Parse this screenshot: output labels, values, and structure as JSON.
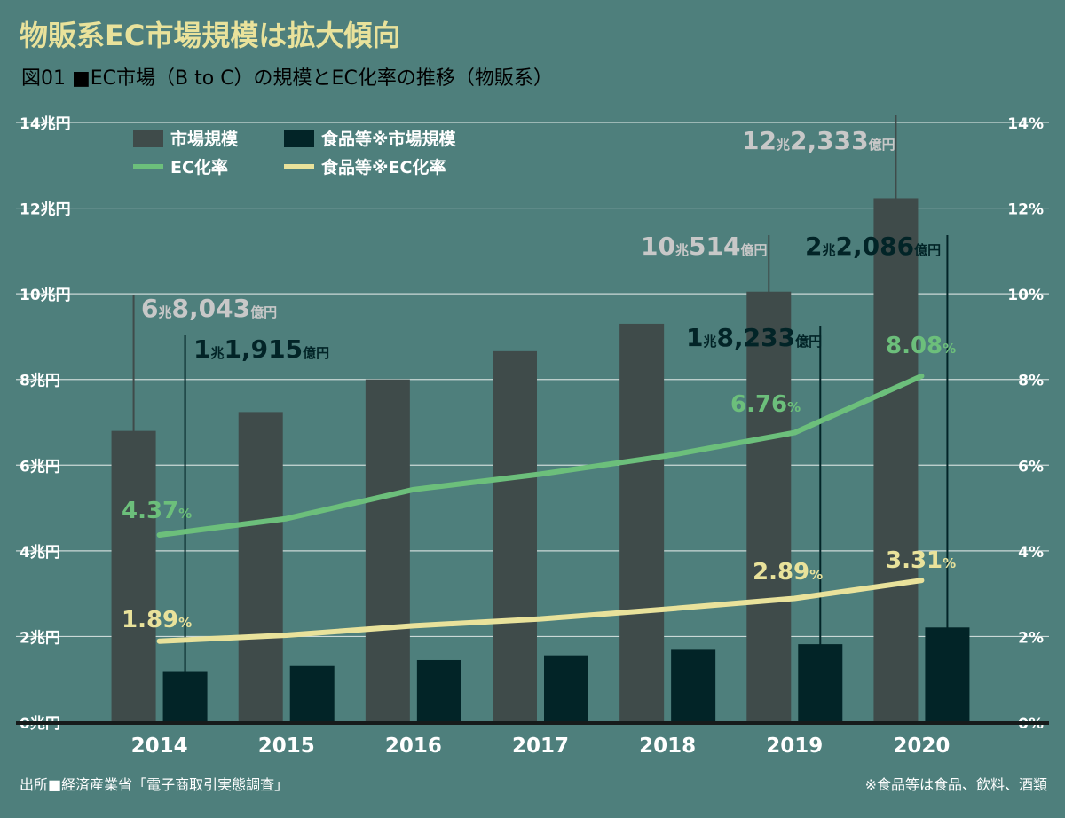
{
  "page": {
    "title": "物販系EC市場規模は拡大傾向",
    "subtitle": "図01 ■EC市場（B to C）の規模とEC化率の推移（物販系）",
    "source": "出所■経済産業省「電子商取引実態調査」",
    "footnote": "※食品等は食品、飲料、酒類"
  },
  "colors": {
    "background": "#4e7f7c",
    "title": "#e9e29b",
    "bar_market": "#3f4b4a",
    "bar_food": "#022427",
    "line_ec": "#6cbf7b",
    "line_food_ec": "#e9e29b",
    "label_gray": "#c8c8c8",
    "label_dark": "#022427",
    "gridline": "#d9e3e1",
    "baseline": "#161b1b"
  },
  "chart_data": {
    "type": "bar",
    "categories": [
      "2014",
      "2015",
      "2016",
      "2017",
      "2018",
      "2019",
      "2020"
    ],
    "ylim": [
      0,
      14
    ],
    "y2lim": [
      0,
      14
    ],
    "yticks": [
      "0兆円",
      "2兆円",
      "4兆円",
      "6兆円",
      "8兆円",
      "10兆円",
      "12兆円",
      "14兆円"
    ],
    "y2ticks": [
      "0%",
      "2%",
      "4%",
      "6%",
      "8%",
      "10%",
      "12%",
      "14%"
    ],
    "grid": true,
    "legend_position": "top-left",
    "series": [
      {
        "name": "市場規模",
        "kind": "bar",
        "values": [
          6.8,
          7.24,
          8.0,
          8.66,
          9.3,
          10.05,
          12.23
        ]
      },
      {
        "name": "食品等※市場規模",
        "kind": "bar",
        "values": [
          1.19,
          1.31,
          1.45,
          1.56,
          1.69,
          1.82,
          2.21
        ]
      },
      {
        "name": "EC化率",
        "kind": "line",
        "values": [
          4.37,
          4.75,
          5.43,
          5.79,
          6.22,
          6.76,
          8.08
        ]
      },
      {
        "name": "食品等※EC化率",
        "kind": "line",
        "values": [
          1.89,
          2.03,
          2.25,
          2.41,
          2.64,
          2.89,
          3.31
        ]
      }
    ],
    "annotations": [
      {
        "series": "市場規模",
        "category": "2014",
        "big": "6",
        "unit1": "兆",
        "num": "8,043",
        "unit2": "億円"
      },
      {
        "series": "食品等※市場規模",
        "category": "2014",
        "big": "1",
        "unit1": "兆",
        "num": "1,915",
        "unit2": "億円"
      },
      {
        "series": "市場規模",
        "category": "2019",
        "big": "10",
        "unit1": "兆",
        "num": "514",
        "unit2": "億円"
      },
      {
        "series": "食品等※市場規模",
        "category": "2019",
        "big": "1",
        "unit1": "兆",
        "num": "8,233",
        "unit2": "億円"
      },
      {
        "series": "市場規模",
        "category": "2020",
        "big": "12",
        "unit1": "兆",
        "num": "2,333",
        "unit2": "億円"
      },
      {
        "series": "食品等※市場規模",
        "category": "2020",
        "big": "2",
        "unit1": "兆",
        "num": "2,086",
        "unit2": "億円"
      }
    ],
    "rate_labels": [
      {
        "series": "EC化率",
        "category": "2014",
        "value": "4.37",
        "unit": "%"
      },
      {
        "series": "EC化率",
        "category": "2019",
        "value": "6.76",
        "unit": "%"
      },
      {
        "series": "EC化率",
        "category": "2020",
        "value": "8.08",
        "unit": "%"
      },
      {
        "series": "食品等※EC化率",
        "category": "2014",
        "value": "1.89",
        "unit": "%"
      },
      {
        "series": "食品等※EC化率",
        "category": "2019",
        "value": "2.89",
        "unit": "%"
      },
      {
        "series": "食品等※EC化率",
        "category": "2020",
        "value": "3.31",
        "unit": "%"
      }
    ]
  }
}
